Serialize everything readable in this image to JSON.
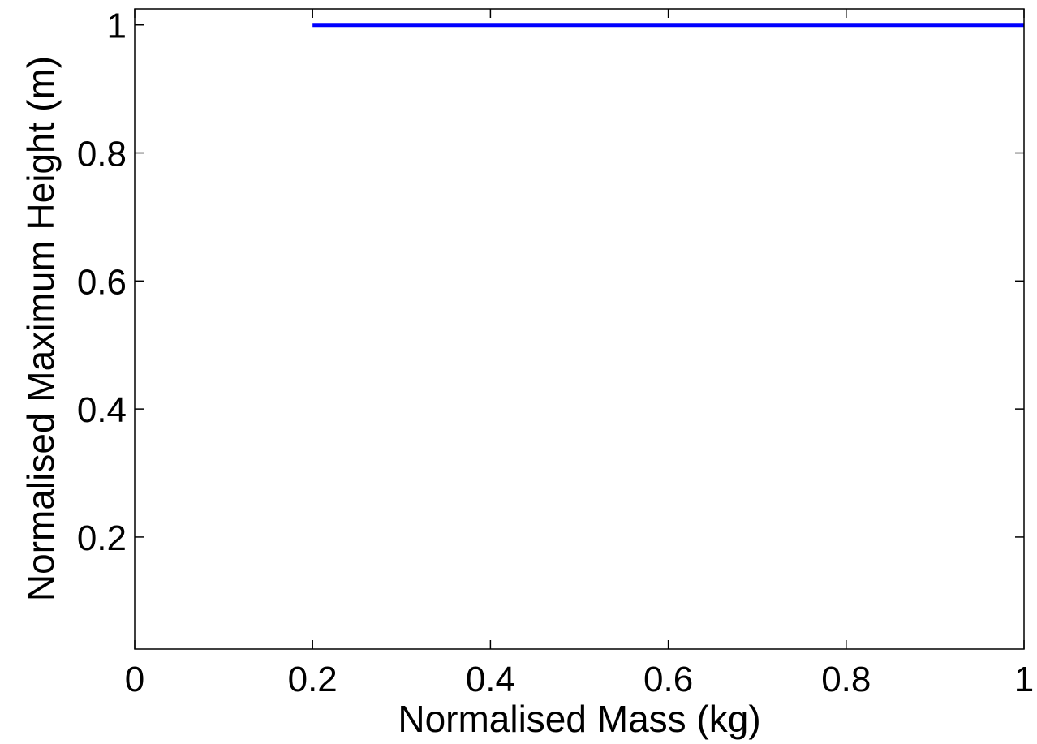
{
  "chart_data": {
    "type": "line",
    "title": "",
    "xlabel": "Normalised Mass (kg)",
    "ylabel": "Normalised Maximum Height (m)",
    "xlim": [
      0,
      1
    ],
    "ylim": [
      0.025,
      1.025
    ],
    "xticks": [
      0,
      0.2,
      0.4,
      0.6,
      0.8,
      1
    ],
    "xtick_labels": [
      "0",
      "0.2",
      "0.4",
      "0.6",
      "0.8",
      "1"
    ],
    "yticks": [
      0.2,
      0.4,
      0.6,
      0.8,
      1
    ],
    "ytick_labels": [
      "0.2",
      "0.4",
      "0.6",
      "0.8",
      "1"
    ],
    "grid": false,
    "legend": "none",
    "series": [
      {
        "color": "#0000ff",
        "x": [
          0.2,
          0.3,
          0.4,
          0.5,
          0.55,
          0.6,
          0.7,
          0.8,
          0.9,
          1.0
        ],
        "y": [
          1,
          1,
          1,
          1,
          1,
          1,
          1,
          1,
          1,
          1
        ]
      }
    ]
  }
}
